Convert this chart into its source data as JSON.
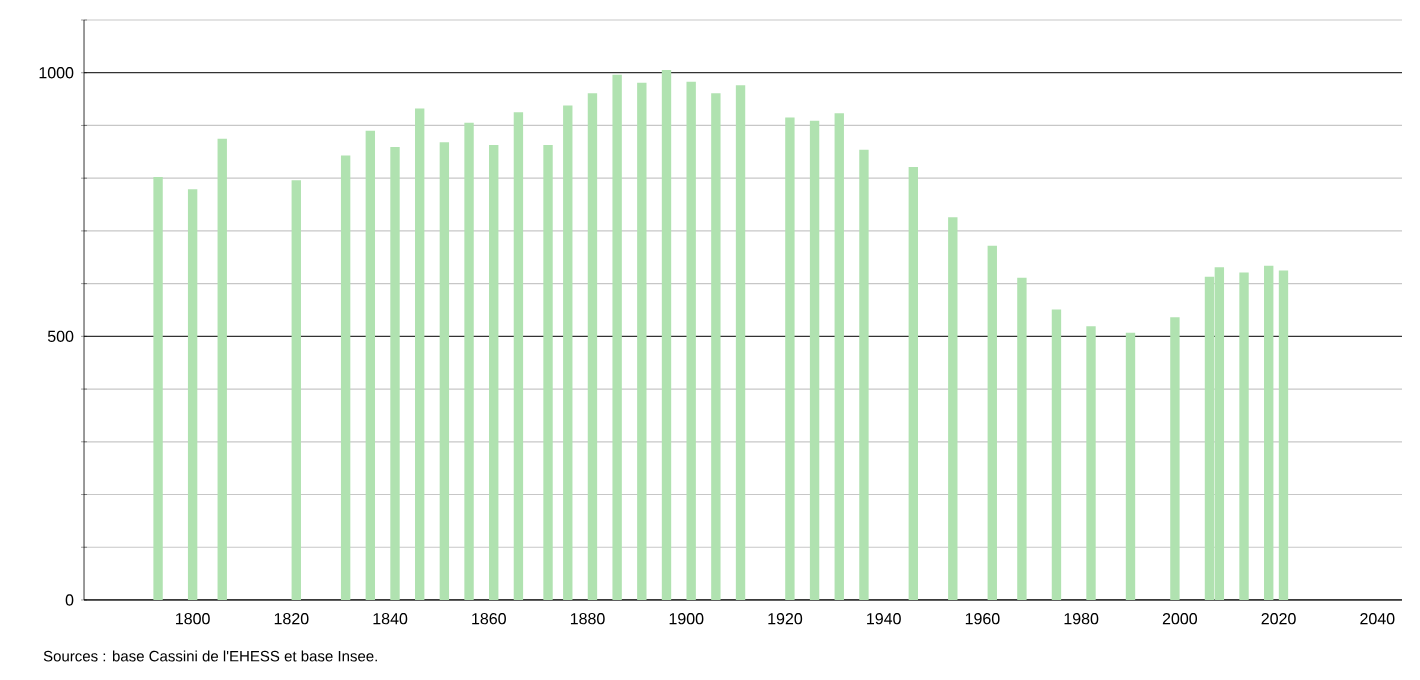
{
  "chart_data": {
    "type": "bar",
    "color": "#b0e2b0",
    "x": [
      1793,
      1800,
      1806,
      1821,
      1831,
      1836,
      1841,
      1846,
      1851,
      1856,
      1861,
      1866,
      1872,
      1876,
      1881,
      1886,
      1891,
      1896,
      1901,
      1906,
      1911,
      1921,
      1926,
      1931,
      1936,
      1946,
      1954,
      1962,
      1968,
      1975,
      1982,
      1990,
      1999,
      2006,
      2008,
      2013,
      2018,
      2021
    ],
    "values": [
      802,
      779,
      875,
      796,
      843,
      890,
      859,
      932,
      868,
      905,
      863,
      925,
      863,
      938,
      961,
      996,
      981,
      1005,
      983,
      961,
      976,
      915,
      909,
      923,
      854,
      821,
      726,
      672,
      611,
      551,
      519,
      507,
      536,
      613,
      631,
      621,
      634,
      625
    ],
    "xlim": [
      1778,
      2045
    ],
    "ylim": [
      0,
      1100
    ],
    "xticks": [
      1800,
      1820,
      1840,
      1860,
      1880,
      1900,
      1920,
      1940,
      1960,
      1980,
      2000,
      2020,
      2040
    ],
    "yticks": [
      0,
      {
        "value": 100,
        "label": null
      },
      {
        "value": 200,
        "label": null
      },
      {
        "value": 300,
        "label": null
      },
      {
        "value": 400,
        "label": null
      },
      500,
      {
        "value": 600,
        "label": null
      },
      {
        "value": 700,
        "label": null
      },
      {
        "value": 800,
        "label": null
      },
      {
        "value": 900,
        "label": null
      },
      1000,
      {
        "value": 1100,
        "label": null
      }
    ],
    "grid": "y",
    "annotations": [
      "Sources : base Cassini de l'EHESS et base Insee."
    ]
  }
}
